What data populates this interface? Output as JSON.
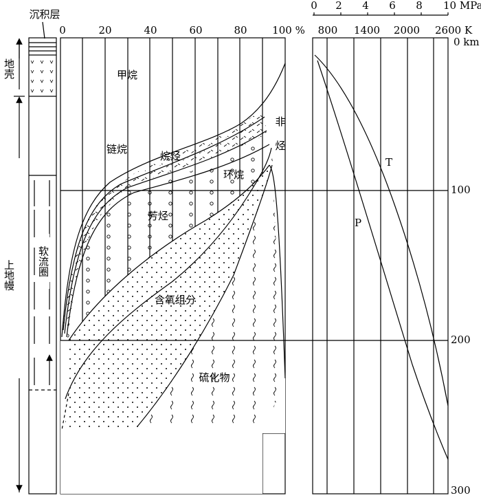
{
  "column": {
    "sediment": "沉积层",
    "crust": "地壳",
    "upper_mantle": "上地幔",
    "asthenosphere": "软流圈"
  },
  "composition_axis": {
    "ticks": [
      "0",
      "20",
      "40",
      "60",
      "80",
      "100 %"
    ]
  },
  "pressure_axis": {
    "ticks": [
      "0",
      "2",
      "4",
      "6",
      "8",
      "10 MPa"
    ]
  },
  "temperature_axis": {
    "ticks": [
      "800",
      "1400",
      "2000",
      "2600 K"
    ]
  },
  "depth_axis": {
    "ticks": [
      "0 km",
      "100",
      "200",
      "300"
    ]
  },
  "regions": {
    "methane": "甲烷",
    "chain_alkanes": "链烷",
    "alkanes": "烷烃",
    "cycloalkanes": "环烷",
    "non_hydrocarbon_1": "非",
    "non_hydrocarbon_2": "烃",
    "aromatics": "芳烃",
    "oxygenates": "含氧组分",
    "sulfides": "硫化物"
  },
  "curves": {
    "temperature": "T",
    "pressure": "P"
  }
}
